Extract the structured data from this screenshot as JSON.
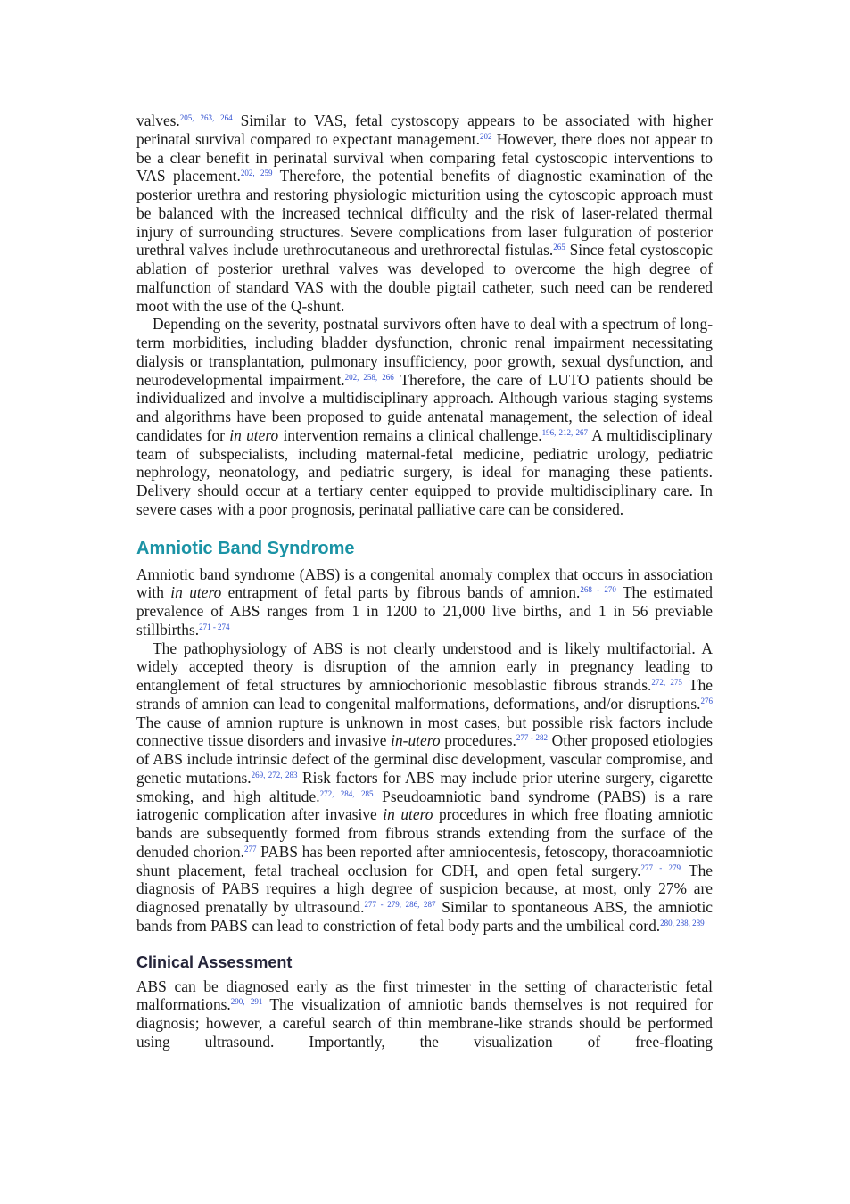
{
  "blocks": [
    {
      "kind": "paragraph",
      "indent": false,
      "segments": [
        {
          "text": "valves."
        },
        {
          "text": "205, 263, 264",
          "style": "sup"
        },
        {
          "text": " Similar to VAS, fetal cystoscopy appears to be associated with higher perinatal survival compared to expectant management."
        },
        {
          "text": "202",
          "style": "sup"
        },
        {
          "text": " However, there does not appear to be a clear benefit in perinatal survival when comparing fetal cystoscopic interventions to VAS placement."
        },
        {
          "text": "202, 259",
          "style": "sup"
        },
        {
          "text": " Therefore, the potential benefits of diagnostic examination of the posterior urethra and restoring physiologic micturition using the cytoscopic approach must be balanced with the increased technical difficulty and the risk of laser-related thermal injury of surrounding structures. Severe complications from laser fulguration of posterior urethral valves include urethrocutaneous and urethrorectal fistulas."
        },
        {
          "text": "265",
          "style": "sup"
        },
        {
          "text": " Since fetal cystoscopic ablation of posterior urethral valves was developed to overcome the high degree of malfunction of standard VAS with the double pigtail catheter, such need can be rendered moot with the use of the Q-shunt."
        }
      ]
    },
    {
      "kind": "paragraph",
      "indent": true,
      "segments": [
        {
          "text": "Depending on the severity, postnatal survivors often have to deal with a spectrum of long-term morbidities, including bladder dysfunction, chronic renal impairment necessitating dialysis or transplantation, pulmonary insufficiency, poor growth, sexual dysfunction, and neurodevelopmental impairment."
        },
        {
          "text": "202, 258, 266",
          "style": "sup"
        },
        {
          "text": " Therefore, the care of LUTO patients should be individualized and involve a multidisciplinary approach. Although various staging systems and algorithms have been proposed to guide antenatal management, the selection of ideal candidates for "
        },
        {
          "text": "in utero",
          "style": "italic"
        },
        {
          "text": " intervention remains a clinical challenge."
        },
        {
          "text": "196, 212, 267",
          "style": "sup"
        },
        {
          "text": " A multidisciplinary team of subspecialists, including maternal-fetal medicine, pediatric urology, pediatric nephrology, neonatology, and pediatric surgery, is ideal for managing these patients. Delivery should occur at a tertiary center equipped to provide multidisciplinary care. In severe cases with a poor prognosis, perinatal palliative care can be considered."
        }
      ]
    },
    {
      "kind": "heading",
      "level": 1,
      "text": "Amniotic Band Syndrome"
    },
    {
      "kind": "paragraph",
      "indent": false,
      "segments": [
        {
          "text": "Amniotic band syndrome (ABS) is a congenital anomaly complex that occurs in association with "
        },
        {
          "text": "in utero",
          "style": "italic"
        },
        {
          "text": " entrapment of fetal parts by fibrous bands of amnion."
        },
        {
          "text": "268 - 270",
          "style": "sup"
        },
        {
          "text": " The estimated prevalence of ABS ranges from 1 in 1200 to 21,000 live births, and 1 in 56 previable stillbirths."
        },
        {
          "text": "271 - 274",
          "style": "sup"
        }
      ]
    },
    {
      "kind": "paragraph",
      "indent": true,
      "segments": [
        {
          "text": "The pathophysiology of ABS is not clearly understood and is likely multifactorial. A widely accepted theory is disruption of the amnion early in pregnancy leading to entanglement of fetal structures by amniochorionic mesoblastic fibrous strands."
        },
        {
          "text": "272, 275",
          "style": "sup"
        },
        {
          "text": " The strands of amnion can lead to congenital malformations, deformations, and/or disruptions."
        },
        {
          "text": "276",
          "style": "sup"
        },
        {
          "text": " The cause of amnion rupture is unknown in most cases, but possible risk factors include connective tissue disorders and invasive "
        },
        {
          "text": "in-utero",
          "style": "italic"
        },
        {
          "text": " procedures."
        },
        {
          "text": "277 - 282",
          "style": "sup"
        },
        {
          "text": " Other proposed etiologies of ABS include intrinsic defect of the germinal disc development, vascular compromise, and genetic mutations."
        },
        {
          "text": "269, 272, 283",
          "style": "sup"
        },
        {
          "text": " Risk factors for ABS may include prior uterine surgery, cigarette smoking, and high altitude."
        },
        {
          "text": "272, 284, 285",
          "style": "sup"
        },
        {
          "text": " Pseudoamniotic band syndrome (PABS) is a rare iatrogenic complication after invasive "
        },
        {
          "text": "in utero",
          "style": "italic"
        },
        {
          "text": " procedures in which free floating amniotic bands are subsequently formed from fibrous strands extending from the surface of the denuded chorion."
        },
        {
          "text": "277",
          "style": "sup"
        },
        {
          "text": " PABS has been reported after amniocentesis, fetoscopy, thoracoamniotic shunt placement, fetal tracheal occlusion for CDH, and open fetal surgery."
        },
        {
          "text": "277 - 279",
          "style": "sup"
        },
        {
          "text": " The diagnosis of PABS requires a high degree of suspicion because, at most, only 27% are diagnosed prenatally by ultrasound."
        },
        {
          "text": "277 - 279, 286, 287",
          "style": "sup"
        },
        {
          "text": " Similar to spontaneous ABS, the amniotic bands from PABS can lead to constriction of fetal body parts and the umbilical cord."
        },
        {
          "text": "280, 288, 289",
          "style": "sup"
        }
      ]
    },
    {
      "kind": "heading",
      "level": 2,
      "text": "Clinical Assessment"
    },
    {
      "kind": "paragraph",
      "indent": false,
      "segments": [
        {
          "text": "ABS can be diagnosed early as the first trimester in the setting of characteristic fetal malformations."
        },
        {
          "text": "290, 291",
          "style": "sup"
        },
        {
          "text": " The visualization of amniotic bands themselves is not required for diagnosis; however, a careful search of thin membrane-like strands should be performed using ultrasound. Importantly, the visualization of free-floating"
        }
      ]
    }
  ]
}
